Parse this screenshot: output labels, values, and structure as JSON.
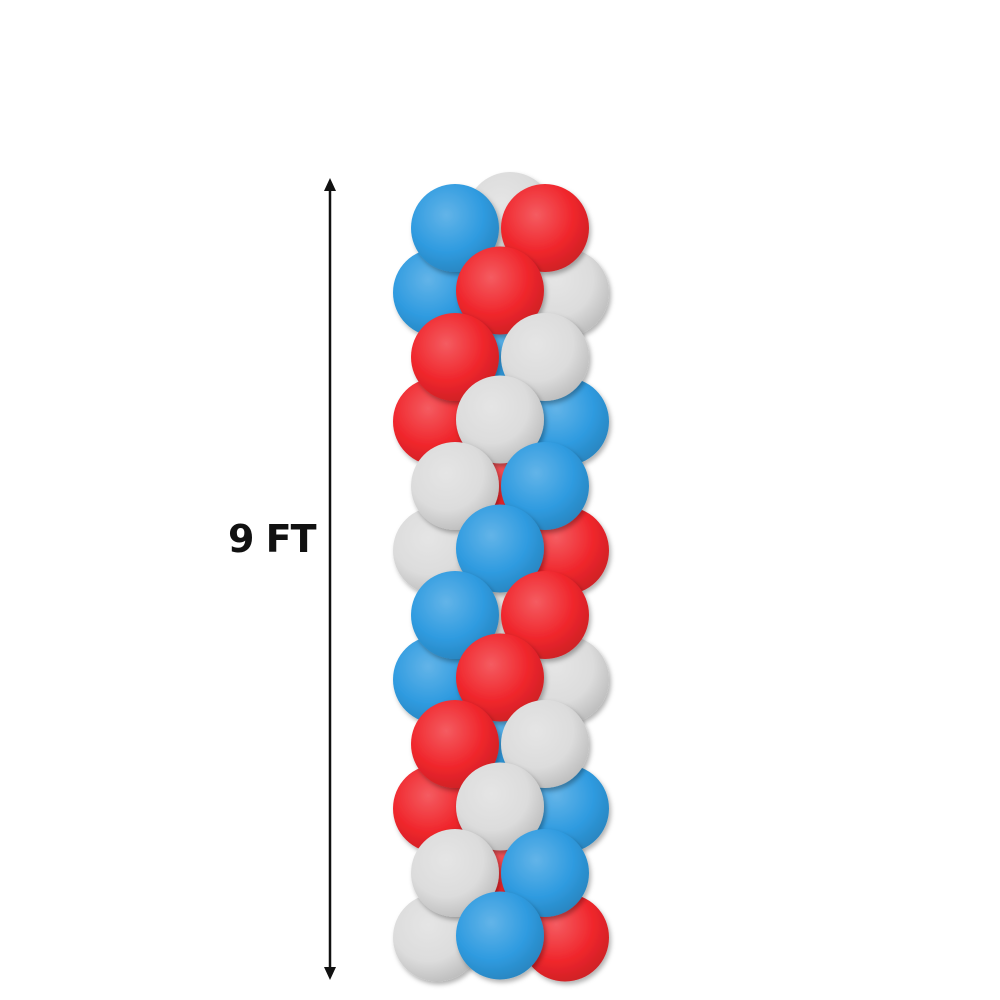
{
  "height_label": "9 FT",
  "colors": {
    "blue": "#2f9be0",
    "red": "#f0262c",
    "white": "#dcdcdc",
    "arrow": "#111111"
  },
  "balloon_rows": [
    {
      "type": "pair",
      "left": "blue",
      "right": "red",
      "back": "white"
    },
    {
      "type": "triple",
      "left": "blue",
      "right": "white",
      "front": "red"
    },
    {
      "type": "pair",
      "left": "red",
      "right": "white",
      "back": "blue"
    },
    {
      "type": "triple",
      "left": "red",
      "right": "blue",
      "front": "white"
    },
    {
      "type": "pair",
      "left": "white",
      "right": "blue",
      "back": "red"
    },
    {
      "type": "triple",
      "left": "white",
      "right": "red",
      "front": "blue"
    },
    {
      "type": "pair",
      "left": "blue",
      "right": "red",
      "back": "white"
    },
    {
      "type": "triple",
      "left": "blue",
      "right": "white",
      "front": "red"
    },
    {
      "type": "pair",
      "left": "red",
      "right": "white",
      "back": "blue"
    },
    {
      "type": "triple",
      "left": "red",
      "right": "blue",
      "front": "white"
    },
    {
      "type": "pair",
      "left": "white",
      "right": "blue",
      "back": "red"
    },
    {
      "type": "triple",
      "left": "white",
      "right": "red",
      "front": "blue"
    }
  ]
}
